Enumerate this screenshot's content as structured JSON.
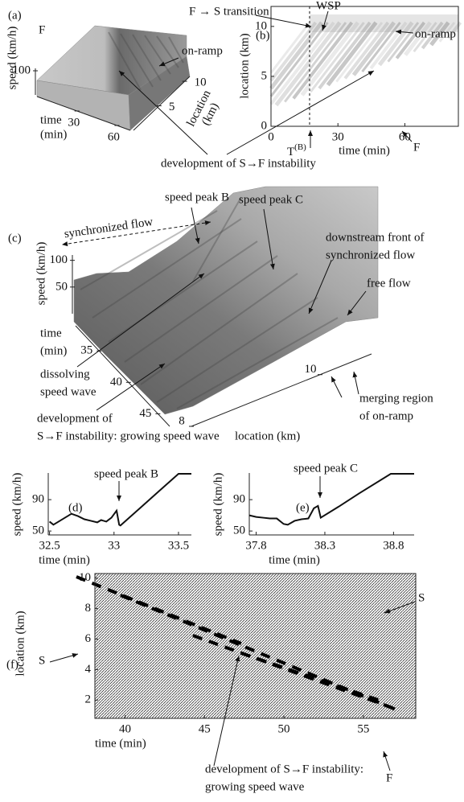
{
  "chart_data": [
    {
      "type": "surface3d",
      "label": "(a)",
      "zlabel": "speed (km/h)",
      "zlim": [
        0,
        110
      ],
      "zticks": [
        100
      ],
      "xlabel": [
        "time",
        "(min)"
      ],
      "xlim": [
        0,
        70
      ],
      "xticks": [
        30,
        60
      ],
      "ylabel": [
        "location",
        "(km)"
      ],
      "ylim": [
        0,
        11
      ],
      "yticks": [
        5,
        10
      ],
      "annotations": [
        "F",
        "on-ramp",
        "development of S→F instability"
      ]
    },
    {
      "type": "density",
      "label": "(b)",
      "xlabel": "time (min)",
      "ylabel": "location (km)",
      "xlim": [
        0,
        84
      ],
      "xticks": [
        0,
        30,
        60
      ],
      "ylim": [
        0,
        12
      ],
      "yticks": [
        0,
        5,
        10
      ],
      "marker": {
        "x": 17.3,
        "label": "T",
        "sup": "(B)"
      },
      "annotations": [
        "F → S  transition",
        "WSP",
        "on-ramp",
        "F"
      ]
    },
    {
      "type": "surface3d",
      "label": "(c)",
      "zlabel": "speed (km/h)",
      "zlim": [
        0,
        110
      ],
      "zticks": [
        50,
        100
      ],
      "xlabel": [
        "time",
        "(min)"
      ],
      "xlim": [
        31,
        47
      ],
      "xticks": [
        35,
        40,
        45
      ],
      "ylabel": "location (km)",
      "ylim": [
        8,
        10.8
      ],
      "yticks": [
        8,
        10
      ],
      "annotations": [
        "synchronized flow",
        "speed peak B",
        "speed peak C",
        [
          "downstream front of",
          "synchronized flow"
        ],
        "free flow",
        [
          "dissolving",
          "speed wave"
        ],
        [
          "development of",
          "S→F instability: growing speed wave"
        ],
        [
          "merging region",
          "of on-ramp"
        ]
      ]
    },
    {
      "type": "line",
      "label": "(d)",
      "xlabel": "time (min)",
      "ylabel": "speed (km/h)",
      "x": [
        32.5,
        32.53,
        32.57,
        32.62,
        32.67,
        32.72,
        32.77,
        32.82,
        32.87,
        32.9,
        32.94,
        32.98,
        33.02,
        33.04,
        33.05,
        33.2,
        33.35,
        33.5,
        33.6
      ],
      "values": [
        62,
        58,
        62,
        67,
        72,
        69,
        65,
        63,
        61,
        64,
        62,
        67,
        76,
        58,
        57,
        79,
        101,
        123,
        123
      ],
      "xlim": [
        32.49,
        33.6
      ],
      "xticks": [
        32.5,
        33,
        33.5
      ],
      "ylim": [
        45,
        124
      ],
      "yticks": [
        50,
        90
      ],
      "annotations": [
        "speed peak B"
      ]
    },
    {
      "type": "line",
      "label": "(e)",
      "xlabel": "time (min)",
      "ylabel": "speed (km/h)",
      "x": [
        37.75,
        37.8,
        37.85,
        37.9,
        37.95,
        38.0,
        38.03,
        38.08,
        38.13,
        38.18,
        38.22,
        38.25,
        38.27,
        38.4,
        38.55,
        38.78,
        38.95
      ],
      "values": [
        70,
        68,
        67,
        66,
        66,
        59,
        58,
        63,
        65,
        66,
        79,
        82,
        67,
        81,
        98,
        123,
        123
      ],
      "xlim": [
        37.75,
        38.95
      ],
      "xticks": [
        37.8,
        38.3,
        38.8
      ],
      "ylim": [
        45,
        124
      ],
      "yticks": [
        50,
        90
      ],
      "annotations": [
        "speed peak C"
      ]
    },
    {
      "type": "trajectories",
      "label": "(f)",
      "xlabel": "time (min)",
      "ylabel": "location (km)",
      "xlim": [
        38.1,
        58.3
      ],
      "xticks": [
        40,
        45,
        50,
        55
      ],
      "ylim": [
        0.8,
        10.3
      ],
      "yticks": [
        2,
        4,
        6,
        8,
        10
      ],
      "annotations": [
        "S",
        "S",
        "F",
        [
          "development of S→F instability:",
          "growing speed wave"
        ]
      ]
    }
  ]
}
